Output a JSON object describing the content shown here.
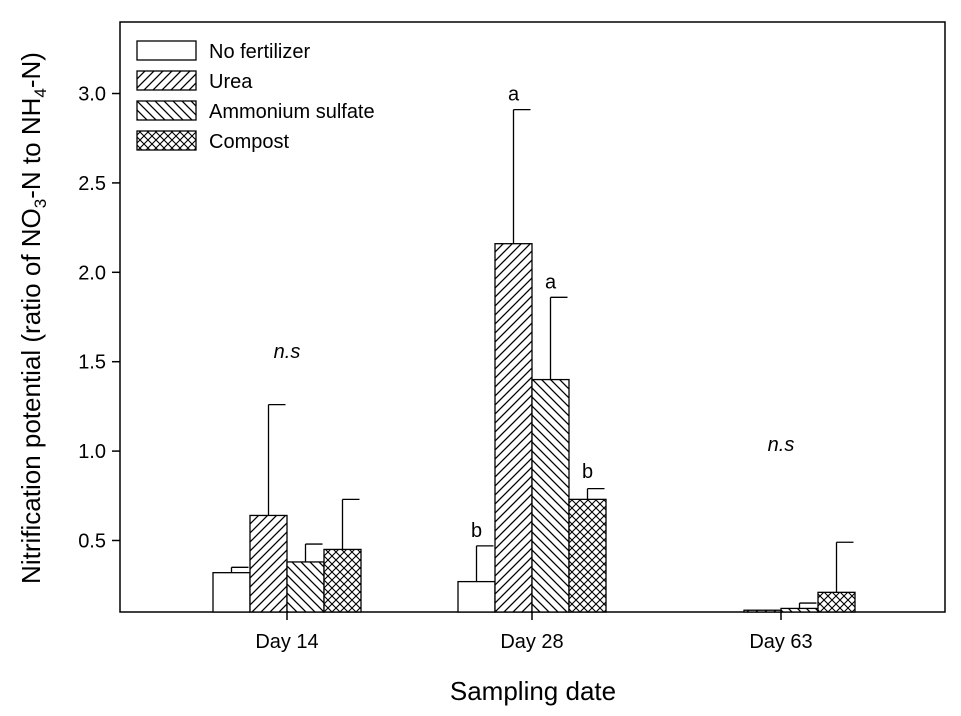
{
  "chart_data": {
    "type": "bar",
    "title": "",
    "xlabel": "Sampling date",
    "ylabel": {
      "parts": [
        {
          "text": "Nitrification potential (ratio of NO",
          "sub": false
        },
        {
          "text": "3",
          "sub": true
        },
        {
          "text": "-N to NH",
          "sub": false
        },
        {
          "text": "4",
          "sub": true
        },
        {
          "text": "-N)",
          "sub": false
        }
      ]
    },
    "ylim": [
      0.1,
      3.4
    ],
    "yticks": [
      {
        "value": 0.5,
        "label": "0.5"
      },
      {
        "value": 1.0,
        "label": "1.0"
      },
      {
        "value": 1.5,
        "label": "1.5"
      },
      {
        "value": 2.0,
        "label": "2.0"
      },
      {
        "value": 2.5,
        "label": "2.5"
      },
      {
        "value": 3.0,
        "label": "3.0"
      }
    ],
    "categories": [
      "Day 14",
      "Day 28",
      "Day 63"
    ],
    "grid": false,
    "legend_position": "top-left",
    "series": [
      {
        "name": "No fertilizer",
        "pattern": "none",
        "values": [
          0.32,
          0.27,
          0.0
        ],
        "errors": [
          0.03,
          0.2,
          0.0
        ]
      },
      {
        "name": "Urea",
        "pattern": "diag-right",
        "values": [
          0.64,
          2.16,
          0.11
        ],
        "errors": [
          0.62,
          0.75,
          0.0
        ]
      },
      {
        "name": "Ammonium sulfate",
        "pattern": "diag-left",
        "values": [
          0.38,
          1.4,
          0.12
        ],
        "errors": [
          0.1,
          0.46,
          0.03
        ]
      },
      {
        "name": "Compost",
        "pattern": "cross",
        "values": [
          0.45,
          0.73,
          0.21
        ],
        "errors": [
          0.28,
          0.06,
          0.28
        ]
      }
    ],
    "annotations": [
      {
        "text": "n.s",
        "italic": true,
        "category": 0,
        "y": 1.52
      },
      {
        "text": "b",
        "italic": false,
        "category": 1,
        "series": 0,
        "y": 0.52
      },
      {
        "text": "a",
        "italic": false,
        "category": 1,
        "series": 1,
        "y": 2.96
      },
      {
        "text": "a",
        "italic": false,
        "category": 1,
        "series": 2,
        "y": 1.91
      },
      {
        "text": "b",
        "italic": false,
        "category": 1,
        "series": 3,
        "y": 0.85
      },
      {
        "text": "n.s",
        "italic": true,
        "category": 2,
        "y": 1.0
      }
    ]
  }
}
